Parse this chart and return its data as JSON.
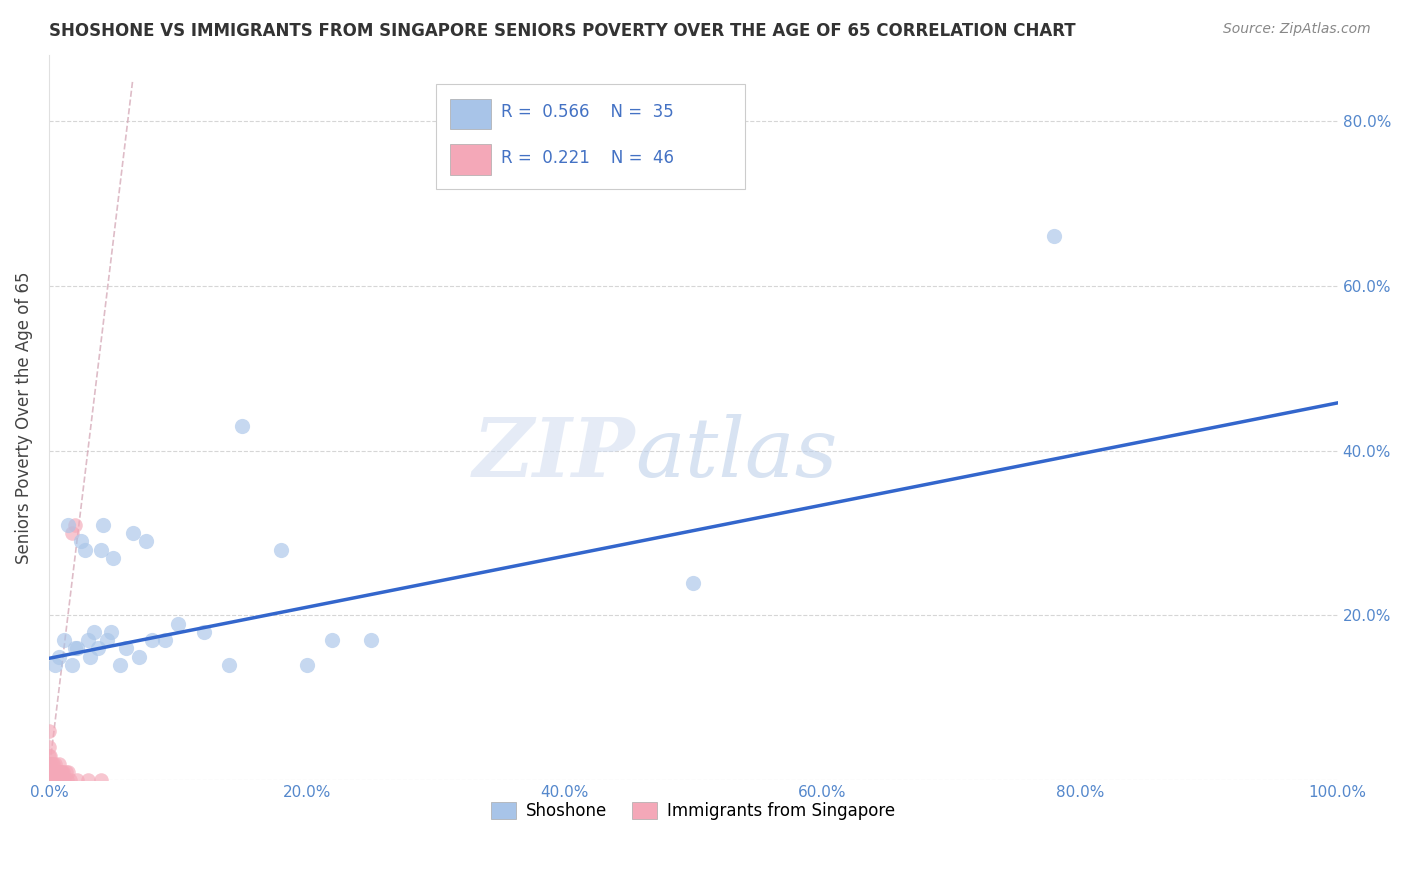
{
  "title": "SHOSHONE VS IMMIGRANTS FROM SINGAPORE SENIORS POVERTY OVER THE AGE OF 65 CORRELATION CHART",
  "source": "Source: ZipAtlas.com",
  "ylabel": "Seniors Poverty Over the Age of 65",
  "xlim": [
    0,
    1.0
  ],
  "ylim": [
    0,
    0.88
  ],
  "xticks": [
    0.0,
    0.2,
    0.4,
    0.6,
    0.8,
    1.0
  ],
  "xticklabels": [
    "0.0%",
    "20.0%",
    "40.0%",
    "60.0%",
    "80.0%",
    "100.0%"
  ],
  "yticks": [
    0.0,
    0.2,
    0.4,
    0.6,
    0.8
  ],
  "yticklabels": [
    "",
    "20.0%",
    "40.0%",
    "60.0%",
    "80.0%"
  ],
  "legend_R1": "0.566",
  "legend_N1": "35",
  "legend_R2": "0.221",
  "legend_N2": "46",
  "blue_color": "#a8c4e8",
  "pink_color": "#f4a8b8",
  "trend_blue_color": "#3366cc",
  "trend_pink_color": "#d0a0b0",
  "watermark": "ZIPatlas",
  "shoshone_x": [
    0.005,
    0.008,
    0.012,
    0.015,
    0.018,
    0.02,
    0.022,
    0.025,
    0.028,
    0.03,
    0.032,
    0.035,
    0.038,
    0.04,
    0.042,
    0.045,
    0.048,
    0.05,
    0.055,
    0.06,
    0.065,
    0.07,
    0.075,
    0.08,
    0.09,
    0.1,
    0.12,
    0.14,
    0.15,
    0.18,
    0.2,
    0.22,
    0.25,
    0.78,
    0.5
  ],
  "shoshone_y": [
    0.14,
    0.15,
    0.17,
    0.31,
    0.14,
    0.16,
    0.16,
    0.29,
    0.28,
    0.17,
    0.15,
    0.18,
    0.16,
    0.28,
    0.31,
    0.17,
    0.18,
    0.27,
    0.14,
    0.16,
    0.3,
    0.15,
    0.29,
    0.17,
    0.17,
    0.19,
    0.18,
    0.14,
    0.43,
    0.28,
    0.14,
    0.17,
    0.17,
    0.66,
    0.24
  ],
  "singapore_x": [
    0.0,
    0.0,
    0.0,
    0.0,
    0.0,
    0.0,
    0.0,
    0.0,
    0.001,
    0.001,
    0.001,
    0.001,
    0.002,
    0.002,
    0.002,
    0.003,
    0.003,
    0.003,
    0.004,
    0.004,
    0.005,
    0.005,
    0.005,
    0.006,
    0.006,
    0.007,
    0.007,
    0.008,
    0.008,
    0.008,
    0.009,
    0.009,
    0.01,
    0.01,
    0.011,
    0.011,
    0.012,
    0.013,
    0.014,
    0.015,
    0.016,
    0.018,
    0.02,
    0.022,
    0.03,
    0.04
  ],
  "singapore_y": [
    0.0,
    0.0,
    0.0,
    0.01,
    0.02,
    0.03,
    0.04,
    0.06,
    0.0,
    0.01,
    0.02,
    0.03,
    0.0,
    0.01,
    0.02,
    0.0,
    0.01,
    0.02,
    0.0,
    0.01,
    0.0,
    0.01,
    0.02,
    0.0,
    0.01,
    0.0,
    0.01,
    0.0,
    0.01,
    0.02,
    0.0,
    0.01,
    0.0,
    0.01,
    0.0,
    0.01,
    0.0,
    0.01,
    0.0,
    0.01,
    0.0,
    0.3,
    0.31,
    0.0,
    0.0,
    0.0
  ],
  "trend_blue_x0": 0.0,
  "trend_blue_y0": 0.148,
  "trend_blue_x1": 1.0,
  "trend_blue_y1": 0.458,
  "trend_pink_x0": 0.0,
  "trend_pink_y0": 0.01,
  "trend_pink_x1": 0.065,
  "trend_pink_y1": 0.85
}
